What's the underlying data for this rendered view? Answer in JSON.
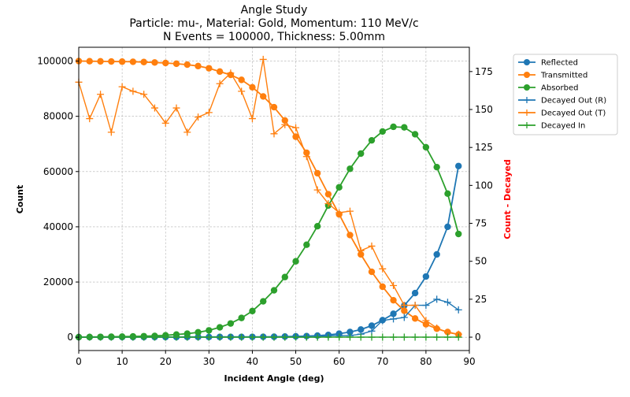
{
  "chart_data": {
    "type": "line",
    "title_lines": [
      "Angle Study",
      "Particle: mu-, Material: Gold, Momentum: 110 MeV/c",
      "N Events = 100000, Thickness: 5.00mm"
    ],
    "xlabel": "Incident Angle (deg)",
    "ylabel": "Count",
    "y2label": "Count - Decayed",
    "xlim": [
      0,
      90
    ],
    "ylim": [
      -4800,
      105000
    ],
    "y2lim": [
      -8.8,
      191
    ],
    "xticks": [
      0,
      10,
      20,
      30,
      40,
      50,
      60,
      70,
      80,
      90
    ],
    "yticks": [
      0,
      20000,
      40000,
      60000,
      80000,
      100000
    ],
    "y2ticks": [
      0,
      25,
      50,
      75,
      100,
      125,
      150,
      175
    ],
    "grid": true,
    "legend_position": "outside-right",
    "x": [
      0,
      2.5,
      5,
      7.5,
      10,
      12.5,
      15,
      17.5,
      20,
      22.5,
      25,
      27.5,
      30,
      32.5,
      35,
      37.5,
      40,
      42.5,
      45,
      47.5,
      50,
      52.5,
      55,
      57.5,
      60,
      62.5,
      65,
      67.5,
      70,
      72.5,
      75,
      77.5,
      80,
      82.5,
      85,
      87.5
    ],
    "series": [
      {
        "name": "Reflected",
        "axis": "left",
        "color": "#1f77b4",
        "marker": "circle",
        "values": [
          50,
          55,
          60,
          62,
          65,
          70,
          75,
          80,
          85,
          90,
          95,
          100,
          110,
          120,
          130,
          140,
          150,
          170,
          200,
          260,
          330,
          430,
          600,
          850,
          1300,
          1900,
          2800,
          4200,
          6200,
          8500,
          11500,
          16000,
          22000,
          30000,
          40000,
          62000
        ]
      },
      {
        "name": "Transmitted",
        "axis": "left",
        "color": "#ff7f0e",
        "marker": "circle",
        "values": [
          100000,
          99950,
          99900,
          99850,
          99800,
          99750,
          99650,
          99500,
          99300,
          99050,
          98700,
          98200,
          97400,
          96200,
          95000,
          93200,
          90500,
          87200,
          83300,
          78500,
          72600,
          66800,
          59400,
          51800,
          44500,
          37000,
          30000,
          23700,
          18300,
          13400,
          9600,
          6800,
          4700,
          3100,
          1900,
          1000
        ]
      },
      {
        "name": "Absorbed",
        "axis": "left",
        "color": "#2ca02c",
        "marker": "circle",
        "values": [
          50,
          100,
          150,
          200,
          250,
          300,
          400,
          500,
          700,
          1000,
          1300,
          1800,
          2500,
          3600,
          5000,
          7000,
          9500,
          13000,
          17000,
          21800,
          27500,
          33500,
          40200,
          47700,
          54300,
          61000,
          66500,
          71300,
          74500,
          76200,
          76000,
          73500,
          68800,
          61600,
          52000,
          37400
        ]
      },
      {
        "name": "Decayed Out (R)",
        "axis": "right",
        "color": "#1f77b4",
        "marker": "plus",
        "values": [
          0,
          0,
          0,
          0,
          0,
          0,
          0,
          0,
          0,
          0,
          0,
          0,
          0,
          0,
          0,
          0,
          0,
          0,
          0,
          0,
          0,
          0,
          0,
          1,
          1,
          1,
          2,
          4,
          11,
          12,
          13,
          21,
          21,
          25,
          23,
          18
        ]
      },
      {
        "name": "Decayed Out (T)",
        "axis": "right",
        "color": "#ff7f0e",
        "marker": "plus",
        "values": [
          168,
          144,
          160,
          135,
          165,
          162,
          160,
          151,
          141,
          151,
          135,
          145,
          148,
          167,
          174,
          162,
          144,
          183,
          134,
          140,
          138,
          119,
          97,
          88,
          82,
          83,
          57,
          60,
          45,
          34,
          21,
          21,
          11,
          6,
          3,
          2
        ]
      },
      {
        "name": "Decayed In",
        "axis": "right",
        "color": "#2ca02c",
        "marker": "plus",
        "values": [
          0,
          0,
          0,
          0,
          0,
          0,
          0,
          0,
          0,
          0,
          0,
          0,
          0,
          0,
          0,
          0,
          0,
          0,
          0,
          0,
          0,
          0,
          0,
          0,
          0,
          0,
          0,
          0,
          0,
          0,
          0,
          0,
          0,
          0,
          0,
          0
        ]
      }
    ]
  }
}
